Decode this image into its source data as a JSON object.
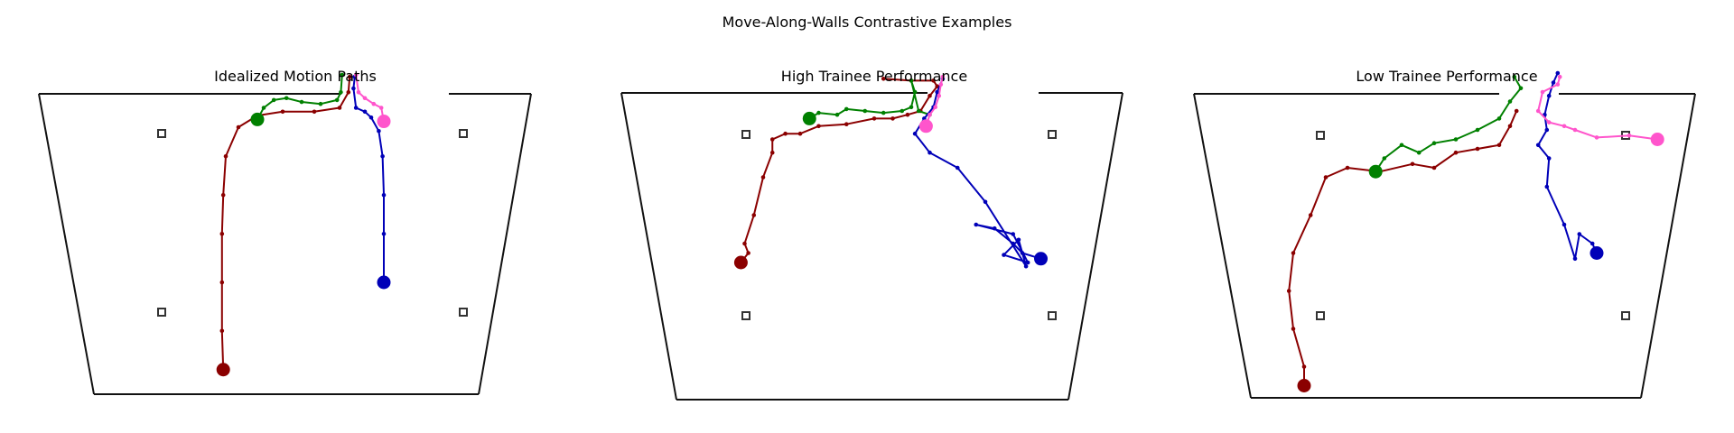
{
  "figure": {
    "title": "Move-Along-Walls Contrastive Examples"
  },
  "colors": {
    "red": "#8b0000",
    "green": "#008000",
    "blue": "#0000b8",
    "pink": "#ff55cc",
    "room": "#111111",
    "marker": "#333333"
  },
  "chart_data": [
    {
      "type": "scatter",
      "title": "Idealized Motion Paths",
      "series": [
        {
          "color_key": "red",
          "x": [
            -0.57,
            -0.58,
            -0.58,
            -0.58,
            -0.57,
            -0.55,
            -0.45,
            -0.3,
            -0.1,
            0.15,
            0.35,
            0.42,
            0.43
          ],
          "y": [
            -0.65,
            -0.45,
            -0.2,
            0.05,
            0.25,
            0.45,
            0.6,
            0.66,
            0.68,
            0.68,
            0.7,
            0.78,
            0.86
          ]
        },
        {
          "color_key": "green",
          "x": [
            -0.3,
            -0.25,
            -0.17,
            -0.07,
            0.05,
            0.2,
            0.33,
            0.36,
            0.37
          ],
          "y": [
            0.64,
            0.7,
            0.74,
            0.75,
            0.73,
            0.72,
            0.74,
            0.78,
            0.87
          ]
        },
        {
          "color_key": "blue",
          "x": [
            0.7,
            0.7,
            0.7,
            0.69,
            0.66,
            0.6,
            0.55,
            0.48,
            0.46,
            0.47
          ],
          "y": [
            -0.2,
            0.05,
            0.25,
            0.45,
            0.58,
            0.65,
            0.68,
            0.7,
            0.8,
            0.86
          ]
        },
        {
          "color_key": "pink",
          "x": [
            0.7,
            0.68,
            0.62,
            0.55,
            0.5,
            0.48
          ],
          "y": [
            0.63,
            0.7,
            0.72,
            0.75,
            0.78,
            0.87
          ]
        }
      ]
    },
    {
      "type": "scatter",
      "title": "High Trainee Performance",
      "series": [
        {
          "color_key": "red",
          "x": [
            -0.72,
            -0.68,
            -0.7,
            -0.65,
            -0.6,
            -0.55,
            -0.55,
            -0.48,
            -0.4,
            -0.3,
            -0.15,
            0.0,
            0.1,
            0.18,
            0.25,
            0.3,
            0.34,
            0.32,
            0.2,
            0.05
          ],
          "y": [
            -0.1,
            -0.05,
            0.0,
            0.15,
            0.35,
            0.48,
            0.55,
            0.58,
            0.58,
            0.62,
            0.63,
            0.66,
            0.66,
            0.68,
            0.7,
            0.78,
            0.83,
            0.86,
            0.86,
            0.87
          ]
        },
        {
          "color_key": "green",
          "x": [
            -0.35,
            -0.3,
            -0.2,
            -0.15,
            -0.05,
            0.05,
            0.15,
            0.2,
            0.22,
            0.2,
            0.24,
            0.3
          ],
          "y": [
            0.66,
            0.69,
            0.68,
            0.71,
            0.7,
            0.69,
            0.7,
            0.72,
            0.8,
            0.86,
            0.7,
            0.68
          ]
        },
        {
          "color_key": "blue",
          "x": [
            0.9,
            0.8,
            0.75,
            0.65,
            0.55,
            0.75,
            0.83,
            0.7,
            0.78,
            0.82,
            0.6,
            0.45,
            0.3,
            0.22,
            0.27,
            0.32,
            0.34,
            0.37
          ],
          "y": [
            -0.08,
            -0.05,
            0.0,
            0.08,
            0.1,
            0.05,
            -0.1,
            -0.06,
            0.02,
            -0.12,
            0.22,
            0.4,
            0.48,
            0.58,
            0.66,
            0.72,
            0.8,
            0.87
          ]
        },
        {
          "color_key": "pink",
          "x": [
            0.28,
            0.3,
            0.33,
            0.35,
            0.36,
            0.37
          ],
          "y": [
            0.62,
            0.68,
            0.72,
            0.78,
            0.84,
            0.88
          ]
        }
      ]
    },
    {
      "type": "scatter",
      "title": "Low Trainee Performance",
      "series": [
        {
          "color_key": "red",
          "x": [
            -0.65,
            -0.65,
            -0.7,
            -0.72,
            -0.7,
            -0.62,
            -0.55,
            -0.45,
            -0.3,
            -0.15,
            -0.05,
            0.05,
            0.15,
            0.25,
            0.3,
            0.33
          ],
          "y": [
            -0.75,
            -0.65,
            -0.45,
            -0.25,
            -0.05,
            0.15,
            0.35,
            0.4,
            0.38,
            0.42,
            0.4,
            0.48,
            0.5,
            0.52,
            0.62,
            0.7
          ]
        },
        {
          "color_key": "green",
          "x": [
            -0.32,
            -0.28,
            -0.2,
            -0.12,
            -0.05,
            0.05,
            0.15,
            0.25,
            0.3,
            0.35,
            0.32
          ],
          "y": [
            0.38,
            0.45,
            0.52,
            0.48,
            0.53,
            0.55,
            0.6,
            0.66,
            0.75,
            0.82,
            0.88
          ]
        },
        {
          "color_key": "blue",
          "x": [
            0.7,
            0.68,
            0.62,
            0.6,
            0.55,
            0.47,
            0.48,
            0.43,
            0.47,
            0.46,
            0.48,
            0.5,
            0.52
          ],
          "y": [
            -0.05,
            0.0,
            0.05,
            -0.08,
            0.1,
            0.3,
            0.45,
            0.52,
            0.6,
            0.68,
            0.78,
            0.85,
            0.9
          ]
        },
        {
          "color_key": "pink",
          "x": [
            0.98,
            0.85,
            0.7,
            0.6,
            0.55,
            0.48,
            0.43,
            0.45,
            0.52,
            0.53
          ],
          "y": [
            0.55,
            0.57,
            0.56,
            0.6,
            0.62,
            0.64,
            0.7,
            0.8,
            0.84,
            0.88
          ]
        }
      ]
    }
  ]
}
